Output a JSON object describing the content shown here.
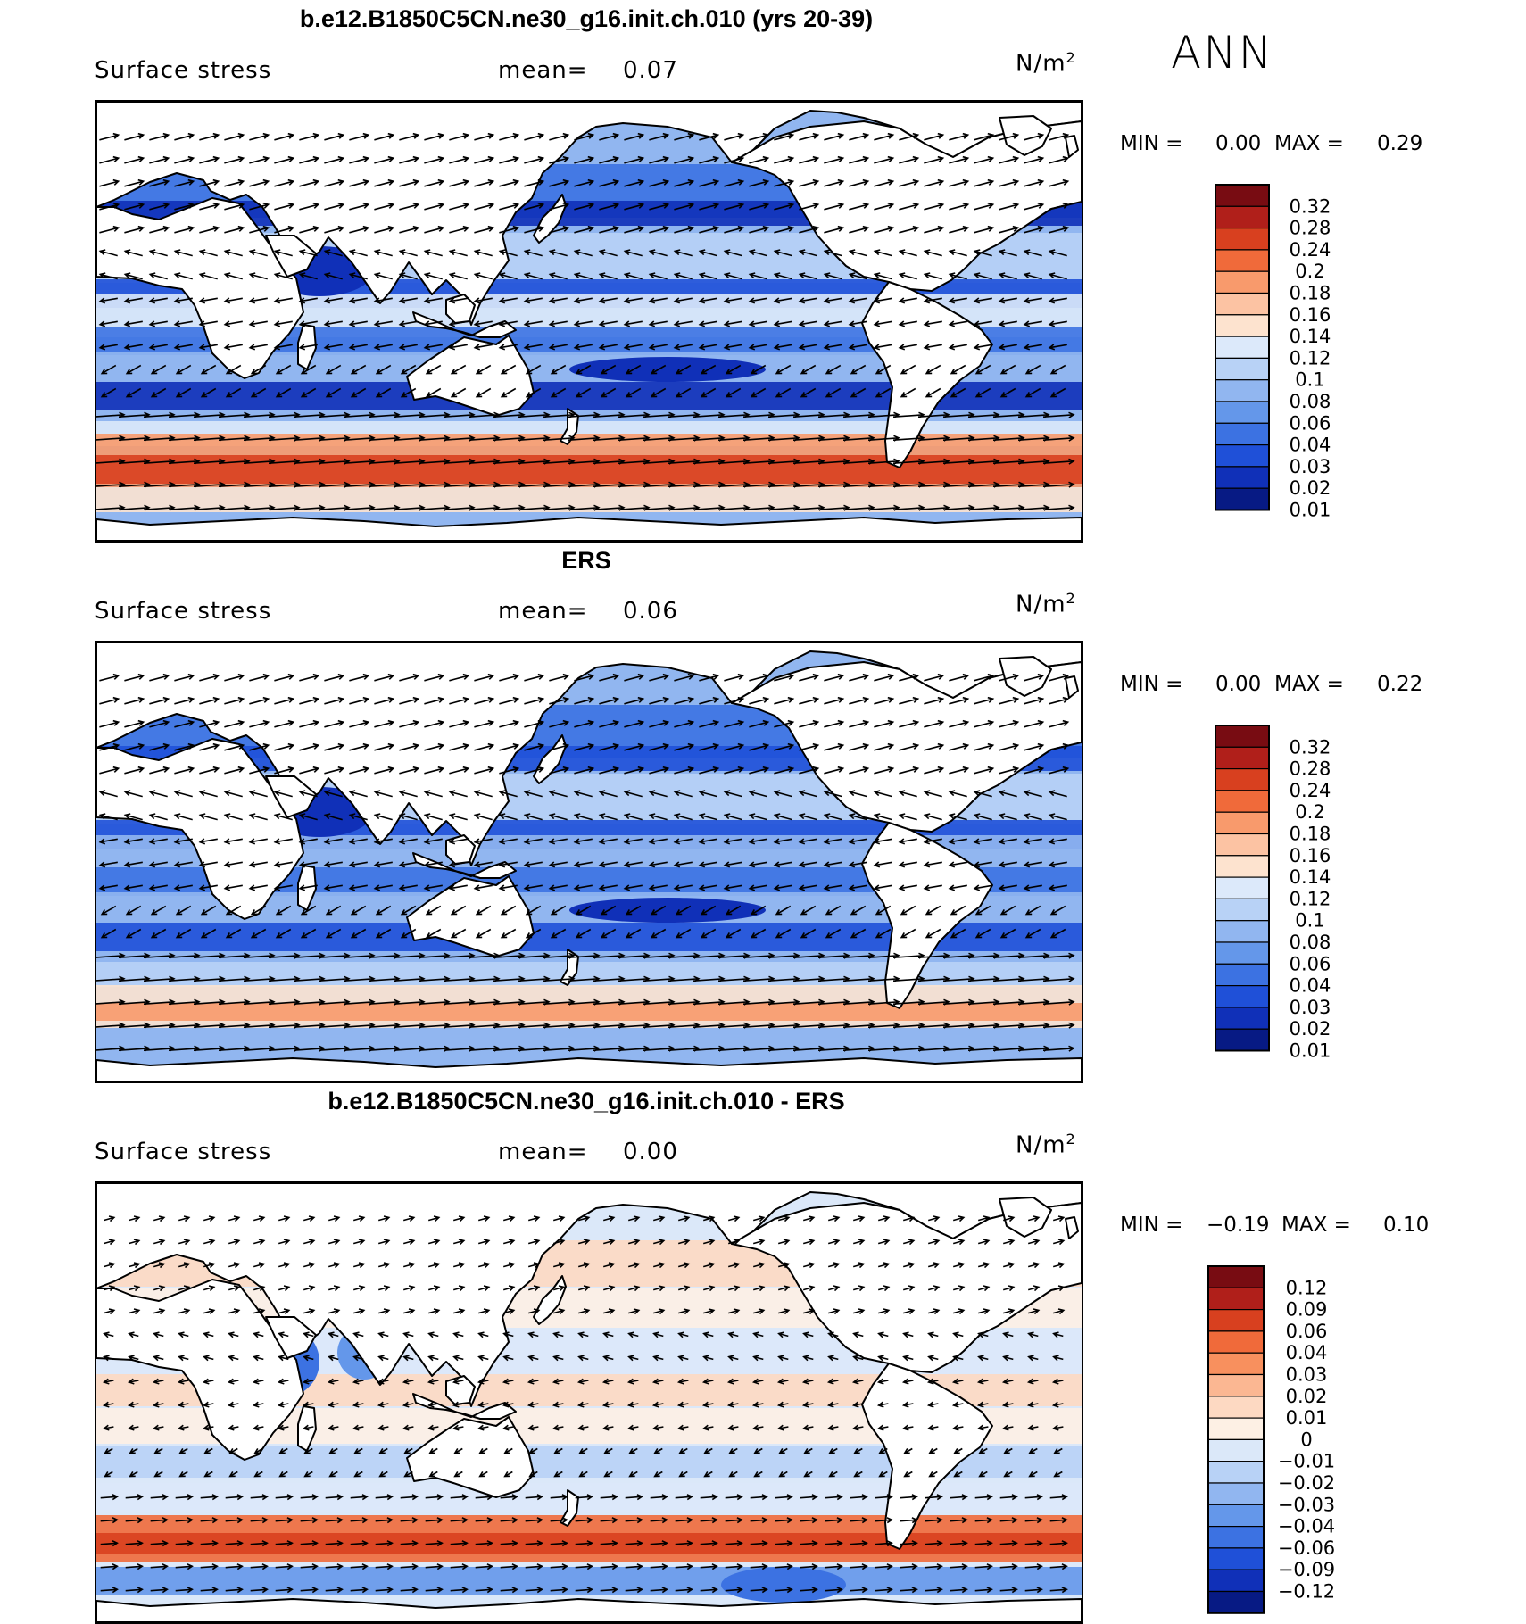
{
  "season": "ANN",
  "panels": [
    {
      "title": "b.e12.B1850C5CN.ne30_g16.init.ch.010 (yrs 20-39)",
      "field": "Surface stress",
      "mean_label": "mean=",
      "mean_value": "0.07",
      "units": "N/m",
      "units_sup": "2",
      "min_label": "MIN =",
      "min_value": "0.00",
      "max_label": "MAX =",
      "max_value": "0.29",
      "colorbar_labels": [
        "0.32",
        "0.28",
        "0.24",
        "0.2",
        "0.18",
        "0.16",
        "0.14",
        "0.12",
        "0.1",
        "0.08",
        "0.06",
        "0.04",
        "0.03",
        "0.02",
        "0.01"
      ],
      "colorbar_colors": [
        "#780c12",
        "#b01f1a",
        "#d8401f",
        "#f06a3a",
        "#f89a6c",
        "#fcc3a3",
        "#fde3cf",
        "#dce9fa",
        "#b8d2f6",
        "#91b6f0",
        "#6497ea",
        "#3c72e2",
        "#1f50d8",
        "#1030b8",
        "#071a84"
      ],
      "style": "model"
    },
    {
      "title": "ERS",
      "field": "Surface stress",
      "mean_label": "mean=",
      "mean_value": "0.06",
      "units": "N/m",
      "units_sup": "2",
      "min_label": "MIN =",
      "min_value": "0.00",
      "max_label": "MAX =",
      "max_value": "0.22",
      "colorbar_labels": [
        "0.32",
        "0.28",
        "0.24",
        "0.2",
        "0.18",
        "0.16",
        "0.14",
        "0.12",
        "0.1",
        "0.08",
        "0.06",
        "0.04",
        "0.03",
        "0.02",
        "0.01"
      ],
      "colorbar_colors": [
        "#780c12",
        "#b01f1a",
        "#d8401f",
        "#f06a3a",
        "#f89a6c",
        "#fcc3a3",
        "#fde3cf",
        "#dce9fa",
        "#b8d2f6",
        "#91b6f0",
        "#6497ea",
        "#3c72e2",
        "#1f50d8",
        "#1030b8",
        "#071a84"
      ],
      "style": "obs"
    },
    {
      "title": "b.e12.B1850C5CN.ne30_g16.init.ch.010 - ERS",
      "field": "Surface stress",
      "mean_label": "mean=",
      "mean_value": "0.00",
      "units": "N/m",
      "units_sup": "2",
      "min_label": "MIN =",
      "min_value": "−0.19",
      "max_label": "MAX =",
      "max_value": "0.10",
      "colorbar_labels": [
        "0.12",
        "0.09",
        "0.06",
        "0.04",
        "0.03",
        "0.02",
        "0.01",
        "0",
        "−0.01",
        "−0.02",
        "−0.03",
        "−0.04",
        "−0.06",
        "−0.09",
        "−0.12"
      ],
      "colorbar_colors": [
        "#780c12",
        "#b01f1a",
        "#d8401f",
        "#f06a3a",
        "#f8905e",
        "#fbb792",
        "#fdd9c2",
        "#fdf0e4",
        "#dbe8f9",
        "#b8d2f6",
        "#91b6f0",
        "#6497ea",
        "#3c72e2",
        "#1f50d8",
        "#1030b8",
        "#071a84"
      ],
      "style": "diff"
    }
  ]
}
